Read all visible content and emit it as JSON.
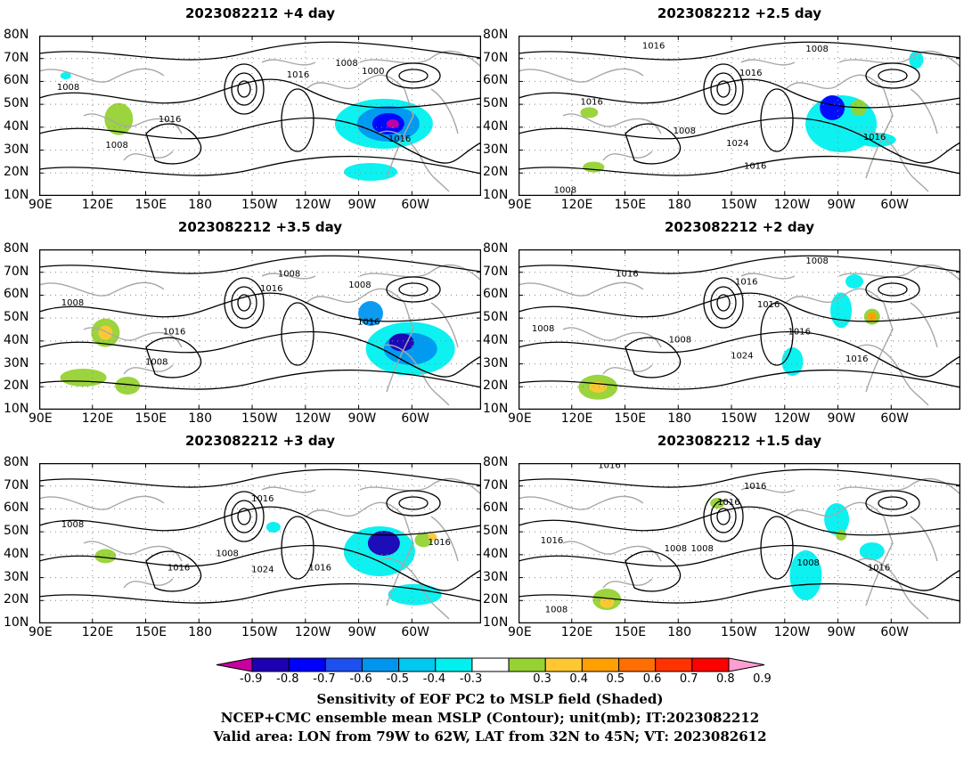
{
  "panels": [
    {
      "title": "2023082212  +4 day",
      "contours": [
        {
          "label": "1008"
        },
        {
          "label": "1016"
        },
        {
          "label": "1008"
        },
        {
          "label": "1016"
        },
        {
          "label": "1008"
        },
        {
          "label": "1000"
        },
        {
          "label": "1016"
        }
      ]
    },
    {
      "title": "2023082212  +2.5 day",
      "contours": [
        {
          "label": "1016"
        },
        {
          "label": "1008"
        },
        {
          "label": "1016"
        },
        {
          "label": "1016"
        },
        {
          "label": "1008"
        },
        {
          "label": "1024"
        },
        {
          "label": "1016"
        },
        {
          "label": "1016"
        },
        {
          "label": "1008"
        }
      ]
    },
    {
      "title": "2023082212  +3.5 day",
      "contours": [
        {
          "label": "1008"
        },
        {
          "label": "1008"
        },
        {
          "label": "1016"
        },
        {
          "label": "1008"
        },
        {
          "label": "1016"
        },
        {
          "label": "1016"
        },
        {
          "label": "1008"
        }
      ]
    },
    {
      "title": "2023082212  +2 day",
      "contours": [
        {
          "label": "1016"
        },
        {
          "label": "1008"
        },
        {
          "label": "1016"
        },
        {
          "label": "1016"
        },
        {
          "label": "1008"
        },
        {
          "label": "1008"
        },
        {
          "label": "1024"
        },
        {
          "label": "1016"
        },
        {
          "label": "1016"
        }
      ]
    },
    {
      "title": "2023082212  +3 day",
      "contours": [
        {
          "label": "1008"
        },
        {
          "label": "1016"
        },
        {
          "label": "1008"
        },
        {
          "label": "1024"
        },
        {
          "label": "1016"
        },
        {
          "label": "1016"
        },
        {
          "label": "1016"
        }
      ]
    },
    {
      "title": "2023082212  +1.5 day",
      "contours": [
        {
          "label": "1016"
        },
        {
          "label": "1016"
        },
        {
          "label": "1016"
        },
        {
          "label": "1008"
        },
        {
          "label": "1016"
        },
        {
          "label": "1008"
        },
        {
          "label": "1008"
        },
        {
          "label": "1016"
        },
        {
          "label": "1008"
        }
      ]
    }
  ],
  "lat_labels": [
    "80N",
    "70N",
    "60N",
    "50N",
    "40N",
    "30N",
    "20N",
    "10N"
  ],
  "lon_labels": [
    "90E",
    "120E",
    "150E",
    "180",
    "150W",
    "120W",
    "90W",
    "60W"
  ],
  "colorbar": {
    "ticks": [
      "-0.9",
      "-0.8",
      "-0.7",
      "-0.6",
      "-0.5",
      "-0.4",
      "-0.3",
      "0.3",
      "0.4",
      "0.5",
      "0.6",
      "0.7",
      "0.8",
      "0.9"
    ],
    "colors": [
      "#c800a0",
      "#1e00b4",
      "#0000ff",
      "#1e50f0",
      "#0096f0",
      "#00c8f0",
      "#00f0f0",
      "#ffffff",
      "#96d232",
      "#ffc832",
      "#ffa000",
      "#ff6e00",
      "#ff3200",
      "#ff0000",
      "#ff9ed2"
    ]
  },
  "captions": {
    "line1": "Sensitivity of EOF PC2 to MSLP field (Shaded)",
    "line2": "NCEP+CMC ensemble mean MSLP (Contour); unit(mb); IT:2023082212",
    "line3": "Valid area: LON from 79W to 62W, LAT from 32N to 45N; VT: 2023082612"
  }
}
